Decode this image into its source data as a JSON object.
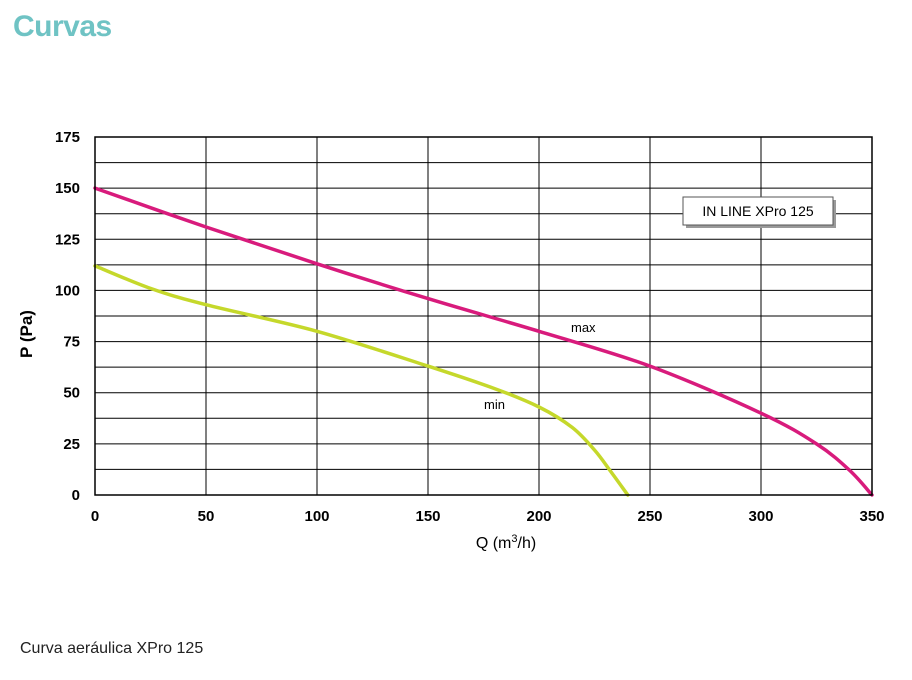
{
  "heading": "Curvas",
  "caption": "Curva aeráulica XPro 125",
  "colors": {
    "heading": "#6fc3c4",
    "max": "#d81b7c",
    "min": "#c5d82b"
  },
  "chart_data": {
    "type": "line",
    "title": "",
    "xlabel": "Q (m³/h)",
    "xlabel_main": "Q (m",
    "xlabel_sup": "3",
    "xlabel_end": "/h)",
    "ylabel": "P (Pa)",
    "xlim": [
      0,
      350
    ],
    "ylim": [
      0,
      175
    ],
    "xticks": [
      0,
      50,
      100,
      150,
      200,
      250,
      300,
      350
    ],
    "yticks": [
      0,
      25,
      50,
      75,
      100,
      125,
      150,
      175
    ],
    "grid": true,
    "annotation_box": "IN LINE XPro 125",
    "series": [
      {
        "name": "max",
        "color": "#d81b7c",
        "x": [
          0,
          50,
          100,
          150,
          200,
          250,
          300,
          325,
          340,
          350
        ],
        "y": [
          150,
          131,
          113,
          96,
          80,
          63,
          40,
          25,
          12,
          0
        ]
      },
      {
        "name": "min",
        "color": "#c5d82b",
        "x": [
          0,
          25,
          50,
          100,
          150,
          180,
          200,
          215,
          225,
          232,
          240
        ],
        "y": [
          112,
          101,
          93,
          80,
          63,
          52,
          43,
          33,
          22,
          12,
          0
        ]
      }
    ]
  }
}
